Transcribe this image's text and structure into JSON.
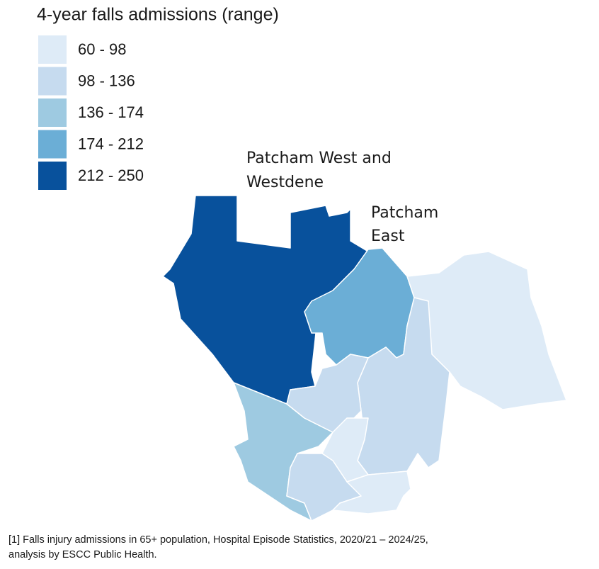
{
  "legend": {
    "title": "4-year falls admissions (range)",
    "items": [
      {
        "label": "60 - 98",
        "color": "#deebf7"
      },
      {
        "label": "98 - 136",
        "color": "#c6dbef"
      },
      {
        "label": "136 - 174",
        "color": "#9ecae1"
      },
      {
        "label": "174 - 212",
        "color": "#6baed6"
      },
      {
        "label": "212 - 250",
        "color": "#08519c"
      }
    ]
  },
  "region_labels": [
    {
      "lines": [
        "Patcham West and",
        "Westdene"
      ]
    },
    {
      "lines": [
        "Patcham",
        "East"
      ]
    }
  ],
  "footnote": [
    "[1] Falls injury admissions in 65+ population, Hospital Episode Statistics, 2020/21 – 2024/25,",
    "analysis by ESCC Public Health."
  ]
}
